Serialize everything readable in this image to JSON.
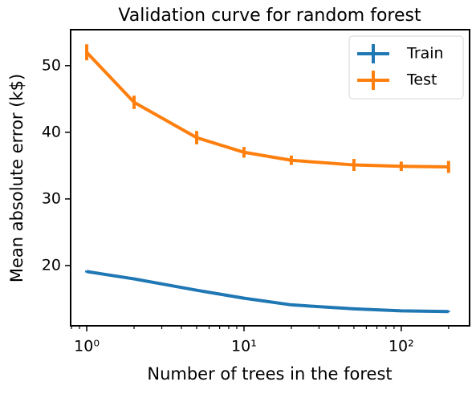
{
  "chart_data": {
    "type": "line",
    "title": "Validation curve for random forest",
    "xlabel": "Number of trees in the forest",
    "ylabel": "Mean absolute error (k$)",
    "x": [
      1,
      2,
      5,
      10,
      20,
      50,
      100,
      200
    ],
    "series": [
      {
        "name": "Train",
        "color": "#1f77b4",
        "values": [
          19.1,
          18.0,
          16.3,
          15.1,
          14.1,
          13.5,
          13.2,
          13.1
        ],
        "errors": [
          0.15,
          0.2,
          0.15,
          0.1,
          0.1,
          0.1,
          0.1,
          0.1
        ]
      },
      {
        "name": "Test",
        "color": "#ff7f0e",
        "values": [
          52.0,
          44.5,
          39.2,
          37.0,
          35.8,
          35.1,
          34.9,
          34.8
        ],
        "errors": [
          1.2,
          1.0,
          1.0,
          0.8,
          0.7,
          0.9,
          0.7,
          0.9
        ]
      }
    ],
    "xscale": "log",
    "xlim": [
      0.79,
      272
    ],
    "xticks": [
      {
        "value": 1,
        "label": "10⁰"
      },
      {
        "value": 10,
        "label": "10¹"
      },
      {
        "value": 100,
        "label": "10²"
      }
    ],
    "xminorticks": [
      0.8,
      0.9,
      2,
      3,
      4,
      5,
      6,
      7,
      8,
      9,
      20,
      30,
      40,
      50,
      60,
      70,
      80,
      90,
      200
    ],
    "ylim": [
      10.96,
      55.4
    ],
    "yticks": [
      20,
      30,
      40,
      50
    ],
    "legend": "upper right"
  }
}
